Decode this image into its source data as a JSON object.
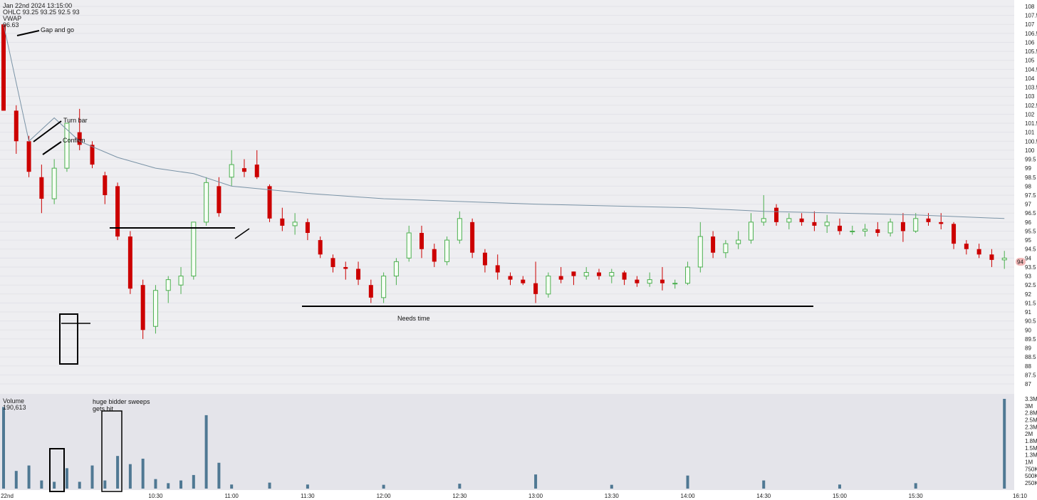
{
  "header": {
    "date_line": "Jan 22nd 2024 13:15:00",
    "ohlc_line": "OHLC 93.25 93.25 92.5 93",
    "vwap_label": "VWAP",
    "vwap_value": "96.63"
  },
  "volume_panel": {
    "label": "Volume",
    "value": "190,613"
  },
  "price_axis": {
    "ticks": [
      "108",
      "107.5",
      "107",
      "106.5",
      "106",
      "105.5",
      "105",
      "104.5",
      "104",
      "103.5",
      "103",
      "102.5",
      "102",
      "101.5",
      "101",
      "100.5",
      "100",
      "99.5",
      "99",
      "98.5",
      "98",
      "97.5",
      "97",
      "96.5",
      "96",
      "95.5",
      "95",
      "94.5",
      "94",
      "93.5",
      "93",
      "92.5",
      "92",
      "91.5",
      "91",
      "90.5",
      "90",
      "89.5",
      "89",
      "88.5",
      "88",
      "87.5",
      "87"
    ],
    "min": 87,
    "max": 108,
    "last_price_label": "94"
  },
  "volume_axis": {
    "ticks": [
      "3.3M",
      "3M",
      "2.8M",
      "2.5M",
      "2.3M",
      "2M",
      "1.8M",
      "1.5M",
      "1.3M",
      "1M",
      "750K",
      "500K",
      "250K"
    ],
    "max": 3300000
  },
  "time_axis": {
    "labels": [
      "22nd",
      "10:30",
      "11:00",
      "11:30",
      "12:00",
      "12:30",
      "13:00",
      "13:30",
      "14:00",
      "14:30",
      "15:00",
      "15:30",
      "16:10"
    ]
  },
  "annotations": {
    "gap_and_go": "Gap and go",
    "turn_bar": "Turn bar",
    "confirm": "Confirm",
    "needs_time": "Needs time",
    "huge_bidder": "huge bidder sweeps",
    "gets_hit": "gets hit"
  },
  "colors": {
    "up": "#4caf50",
    "down": "#cc0000",
    "vwap": "#7a93a6",
    "volume": "#4f7893",
    "grid": "#e3e3e8",
    "background": "#eeeef1",
    "last_price_badge": "#f2b8b8"
  },
  "chart_data": {
    "type": "candlestick",
    "title": "",
    "xlabel": "",
    "ylabel": "",
    "ylim": [
      87,
      108
    ],
    "grid": true,
    "time_range": [
      "09:30",
      "16:10"
    ],
    "bars_sampled": [
      {
        "t": "09:30",
        "o": 107.0,
        "h": 107.0,
        "l": 102.2,
        "c": 102.2
      },
      {
        "t": "09:35",
        "o": 102.2,
        "h": 102.5,
        "l": 99.8,
        "c": 100.5
      },
      {
        "t": "09:40",
        "o": 100.5,
        "h": 100.8,
        "l": 98.5,
        "c": 98.8
      },
      {
        "t": "09:45",
        "o": 98.5,
        "h": 99.2,
        "l": 96.5,
        "c": 97.3
      },
      {
        "t": "09:50",
        "o": 97.3,
        "h": 99.5,
        "l": 97.0,
        "c": 99.0
      },
      {
        "t": "09:55",
        "o": 99.0,
        "h": 101.5,
        "l": 98.8,
        "c": 101.5
      },
      {
        "t": "10:00",
        "o": 101.0,
        "h": 102.3,
        "l": 100.0,
        "c": 100.3
      },
      {
        "t": "10:05",
        "o": 100.3,
        "h": 100.5,
        "l": 99.0,
        "c": 99.2
      },
      {
        "t": "10:10",
        "o": 98.6,
        "h": 98.8,
        "l": 97.0,
        "c": 97.5
      },
      {
        "t": "10:15",
        "o": 98.0,
        "h": 98.2,
        "l": 95.0,
        "c": 95.2
      },
      {
        "t": "10:20",
        "o": 95.2,
        "h": 95.5,
        "l": 92.0,
        "c": 92.3
      },
      {
        "t": "10:25",
        "o": 92.5,
        "h": 92.8,
        "l": 89.5,
        "c": 90.0
      },
      {
        "t": "10:30",
        "o": 90.2,
        "h": 92.5,
        "l": 89.8,
        "c": 92.2
      },
      {
        "t": "10:35",
        "o": 92.2,
        "h": 93.0,
        "l": 91.5,
        "c": 92.8
      },
      {
        "t": "10:40",
        "o": 92.5,
        "h": 93.5,
        "l": 92.0,
        "c": 93.0
      },
      {
        "t": "10:45",
        "o": 93.0,
        "h": 96.0,
        "l": 92.8,
        "c": 96.0
      },
      {
        "t": "10:50",
        "o": 96.0,
        "h": 98.5,
        "l": 95.8,
        "c": 98.2
      },
      {
        "t": "10:55",
        "o": 98.0,
        "h": 98.5,
        "l": 96.3,
        "c": 96.5
      },
      {
        "t": "11:00",
        "o": 98.5,
        "h": 100.0,
        "l": 98.0,
        "c": 99.2
      },
      {
        "t": "11:05",
        "o": 99.0,
        "h": 99.5,
        "l": 98.5,
        "c": 98.8
      },
      {
        "t": "11:10",
        "o": 99.2,
        "h": 100.0,
        "l": 98.4,
        "c": 98.5
      },
      {
        "t": "11:15",
        "o": 98.0,
        "h": 98.1,
        "l": 96.0,
        "c": 96.2
      },
      {
        "t": "11:20",
        "o": 96.2,
        "h": 96.8,
        "l": 95.5,
        "c": 95.8
      },
      {
        "t": "11:25",
        "o": 95.8,
        "h": 96.5,
        "l": 95.3,
        "c": 96.0
      },
      {
        "t": "11:30",
        "o": 96.0,
        "h": 96.2,
        "l": 95.0,
        "c": 95.4
      },
      {
        "t": "11:35",
        "o": 95.0,
        "h": 95.2,
        "l": 94.0,
        "c": 94.2
      },
      {
        "t": "11:40",
        "o": 94.0,
        "h": 94.2,
        "l": 93.2,
        "c": 93.5
      },
      {
        "t": "11:45",
        "o": 93.5,
        "h": 93.8,
        "l": 92.8,
        "c": 93.4
      },
      {
        "t": "11:50",
        "o": 93.4,
        "h": 93.8,
        "l": 92.5,
        "c": 92.8
      },
      {
        "t": "11:55",
        "o": 92.5,
        "h": 92.8,
        "l": 91.5,
        "c": 91.8
      },
      {
        "t": "12:00",
        "o": 91.8,
        "h": 93.2,
        "l": 91.5,
        "c": 93.0
      },
      {
        "t": "12:05",
        "o": 93.0,
        "h": 94.0,
        "l": 92.5,
        "c": 93.8
      },
      {
        "t": "12:10",
        "o": 94.0,
        "h": 95.8,
        "l": 93.8,
        "c": 95.4
      },
      {
        "t": "12:15",
        "o": 95.4,
        "h": 95.8,
        "l": 94.0,
        "c": 94.5
      },
      {
        "t": "12:20",
        "o": 94.5,
        "h": 94.8,
        "l": 93.5,
        "c": 93.8
      },
      {
        "t": "12:25",
        "o": 93.8,
        "h": 95.2,
        "l": 93.6,
        "c": 95.0
      },
      {
        "t": "12:30",
        "o": 95.0,
        "h": 96.6,
        "l": 94.8,
        "c": 96.2
      },
      {
        "t": "12:35",
        "o": 96.0,
        "h": 96.2,
        "l": 94.0,
        "c": 94.3
      },
      {
        "t": "12:40",
        "o": 94.3,
        "h": 94.5,
        "l": 93.2,
        "c": 93.6
      },
      {
        "t": "12:45",
        "o": 93.6,
        "h": 94.2,
        "l": 92.8,
        "c": 93.2
      },
      {
        "t": "12:50",
        "o": 93.0,
        "h": 93.2,
        "l": 92.5,
        "c": 92.8
      },
      {
        "t": "12:55",
        "o": 92.8,
        "h": 93.0,
        "l": 92.5,
        "c": 92.6
      },
      {
        "t": "13:00",
        "o": 92.6,
        "h": 93.8,
        "l": 91.5,
        "c": 92.0
      },
      {
        "t": "13:05",
        "o": 92.0,
        "h": 93.2,
        "l": 91.8,
        "c": 93.0
      },
      {
        "t": "13:10",
        "o": 93.0,
        "h": 93.5,
        "l": 92.6,
        "c": 92.8
      },
      {
        "t": "13:15",
        "o": 93.25,
        "h": 93.25,
        "l": 92.5,
        "c": 93.0
      },
      {
        "t": "13:20",
        "o": 93.0,
        "h": 93.5,
        "l": 92.8,
        "c": 93.2
      },
      {
        "t": "13:25",
        "o": 93.2,
        "h": 93.4,
        "l": 92.8,
        "c": 93.0
      },
      {
        "t": "13:30",
        "o": 93.0,
        "h": 93.4,
        "l": 92.6,
        "c": 93.2
      },
      {
        "t": "13:35",
        "o": 93.2,
        "h": 93.3,
        "l": 92.5,
        "c": 92.8
      },
      {
        "t": "13:40",
        "o": 92.8,
        "h": 93.0,
        "l": 92.4,
        "c": 92.6
      },
      {
        "t": "13:45",
        "o": 92.6,
        "h": 93.2,
        "l": 92.4,
        "c": 92.8
      },
      {
        "t": "13:50",
        "o": 92.8,
        "h": 93.5,
        "l": 92.2,
        "c": 92.6
      },
      {
        "t": "13:55",
        "o": 92.6,
        "h": 92.8,
        "l": 92.3,
        "c": 92.6
      },
      {
        "t": "14:00",
        "o": 92.6,
        "h": 93.8,
        "l": 92.5,
        "c": 93.5
      },
      {
        "t": "14:05",
        "o": 93.5,
        "h": 96.0,
        "l": 93.2,
        "c": 95.2
      },
      {
        "t": "14:10",
        "o": 95.2,
        "h": 95.5,
        "l": 94.0,
        "c": 94.3
      },
      {
        "t": "14:15",
        "o": 94.3,
        "h": 95.0,
        "l": 94.0,
        "c": 94.8
      },
      {
        "t": "14:20",
        "o": 94.8,
        "h": 95.5,
        "l": 94.5,
        "c": 95.0
      },
      {
        "t": "14:25",
        "o": 95.0,
        "h": 96.5,
        "l": 94.8,
        "c": 96.0
      },
      {
        "t": "14:30",
        "o": 96.0,
        "h": 97.5,
        "l": 95.8,
        "c": 96.2
      },
      {
        "t": "14:35",
        "o": 96.8,
        "h": 97.0,
        "l": 95.8,
        "c": 96.0
      },
      {
        "t": "14:40",
        "o": 96.0,
        "h": 96.5,
        "l": 95.6,
        "c": 96.2
      },
      {
        "t": "14:45",
        "o": 96.2,
        "h": 96.5,
        "l": 95.8,
        "c": 96.0
      },
      {
        "t": "14:50",
        "o": 96.0,
        "h": 96.6,
        "l": 95.5,
        "c": 95.8
      },
      {
        "t": "14:55",
        "o": 95.8,
        "h": 96.4,
        "l": 95.4,
        "c": 96.0
      },
      {
        "t": "15:00",
        "o": 95.8,
        "h": 96.2,
        "l": 95.3,
        "c": 95.5
      },
      {
        "t": "15:05",
        "o": 95.5,
        "h": 95.8,
        "l": 95.3,
        "c": 95.5
      },
      {
        "t": "15:10",
        "o": 95.5,
        "h": 95.9,
        "l": 95.2,
        "c": 95.6
      },
      {
        "t": "15:15",
        "o": 95.6,
        "h": 96.0,
        "l": 95.2,
        "c": 95.4
      },
      {
        "t": "15:20",
        "o": 95.4,
        "h": 96.2,
        "l": 95.2,
        "c": 96.0
      },
      {
        "t": "15:25",
        "o": 96.0,
        "h": 96.5,
        "l": 94.9,
        "c": 95.5
      },
      {
        "t": "15:30",
        "o": 95.5,
        "h": 96.5,
        "l": 95.4,
        "c": 96.2
      },
      {
        "t": "15:35",
        "o": 96.2,
        "h": 96.5,
        "l": 95.8,
        "c": 96.0
      },
      {
        "t": "15:40",
        "o": 96.0,
        "h": 96.5,
        "l": 95.6,
        "c": 95.9
      },
      {
        "t": "15:45",
        "o": 95.9,
        "h": 96.0,
        "l": 94.5,
        "c": 94.8
      },
      {
        "t": "15:50",
        "o": 94.8,
        "h": 95.0,
        "l": 94.2,
        "c": 94.5
      },
      {
        "t": "15:55",
        "o": 94.5,
        "h": 94.8,
        "l": 94.0,
        "c": 94.2
      },
      {
        "t": "16:00",
        "o": 94.2,
        "h": 94.5,
        "l": 93.5,
        "c": 93.9
      },
      {
        "t": "16:05",
        "o": 93.9,
        "h": 94.4,
        "l": 93.4,
        "c": 94.0
      }
    ],
    "vwap": [
      {
        "t": "09:30",
        "v": 107.0
      },
      {
        "t": "09:40",
        "v": 100.5
      },
      {
        "t": "09:50",
        "v": 101.8
      },
      {
        "t": "10:00",
        "v": 100.5
      },
      {
        "t": "10:15",
        "v": 99.6
      },
      {
        "t": "10:30",
        "v": 99.0
      },
      {
        "t": "10:45",
        "v": 98.7
      },
      {
        "t": "11:00",
        "v": 98.0
      },
      {
        "t": "11:30",
        "v": 97.6
      },
      {
        "t": "12:00",
        "v": 97.3
      },
      {
        "t": "13:00",
        "v": 97.0
      },
      {
        "t": "14:00",
        "v": 96.8
      },
      {
        "t": "14:30",
        "v": 96.6
      },
      {
        "t": "15:30",
        "v": 96.4
      },
      {
        "t": "16:05",
        "v": 96.2
      }
    ],
    "volume_sampled": [
      {
        "t": "09:30",
        "v": 3000000
      },
      {
        "t": "09:35",
        "v": 650000
      },
      {
        "t": "09:40",
        "v": 850000
      },
      {
        "t": "09:45",
        "v": 300000
      },
      {
        "t": "09:50",
        "v": 250000
      },
      {
        "t": "09:55",
        "v": 750000
      },
      {
        "t": "10:00",
        "v": 250000
      },
      {
        "t": "10:05",
        "v": 850000
      },
      {
        "t": "10:10",
        "v": 300000
      },
      {
        "t": "10:15",
        "v": 1200000
      },
      {
        "t": "10:20",
        "v": 900000
      },
      {
        "t": "10:25",
        "v": 1100000
      },
      {
        "t": "10:30",
        "v": 350000
      },
      {
        "t": "10:35",
        "v": 200000
      },
      {
        "t": "10:40",
        "v": 300000
      },
      {
        "t": "10:45",
        "v": 500000
      },
      {
        "t": "10:50",
        "v": 2700000
      },
      {
        "t": "10:55",
        "v": 950000
      },
      {
        "t": "11:00",
        "v": 150000
      },
      {
        "t": "11:15",
        "v": 220000
      },
      {
        "t": "11:30",
        "v": 150000
      },
      {
        "t": "12:00",
        "v": 140000
      },
      {
        "t": "12:30",
        "v": 180000
      },
      {
        "t": "13:00",
        "v": 520000
      },
      {
        "t": "13:30",
        "v": 140000
      },
      {
        "t": "14:00",
        "v": 480000
      },
      {
        "t": "14:30",
        "v": 300000
      },
      {
        "t": "15:00",
        "v": 150000
      },
      {
        "t": "15:30",
        "v": 200000
      },
      {
        "t": "16:05",
        "v": 3300000
      }
    ],
    "annotations_levels": [
      {
        "label": "",
        "y": 95.95,
        "x_range": [
          "10:47",
          "11:37"
        ]
      },
      {
        "label": "Needs time",
        "y": 91.5,
        "x_range": [
          "11:57",
          "15:00"
        ]
      },
      {
        "label": "",
        "y": 90.5,
        "x_range": [
          "10:25",
          "10:37"
        ]
      }
    ]
  }
}
